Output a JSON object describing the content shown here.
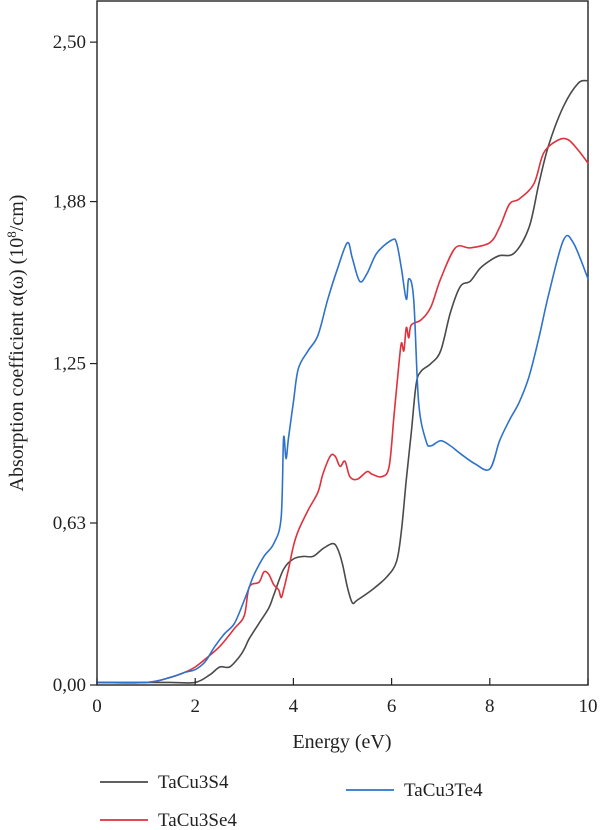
{
  "chart_data": {
    "type": "line",
    "xlabel": "Energy (eV)",
    "ylabel": {
      "prefix": "Absorption coefficient α(ω) (10",
      "sup": "8",
      "suffix": "/cm)"
    },
    "xlim": [
      0,
      10
    ],
    "ylim": [
      0,
      2.66
    ],
    "x_ticks": [
      0,
      2,
      4,
      6,
      8,
      10
    ],
    "x_tick_labels": [
      "0",
      "2",
      "4",
      "6",
      "8",
      "10"
    ],
    "y_ticks": [
      0,
      0.63,
      1.25,
      1.88,
      2.5
    ],
    "y_tick_labels": [
      "0,00",
      "0,63",
      "1,25",
      "1,88",
      "2,50"
    ],
    "grid": false,
    "legend_position": "bottom",
    "series": [
      {
        "name": "TaCu3S4",
        "color": "#4a4a4a",
        "points": [
          [
            0,
            0.01
          ],
          [
            1,
            0.01
          ],
          [
            1.5,
            0.01
          ],
          [
            2,
            0.01
          ],
          [
            2.3,
            0.04
          ],
          [
            2.5,
            0.07
          ],
          [
            2.7,
            0.07
          ],
          [
            2.9,
            0.11
          ],
          [
            3.0,
            0.14
          ],
          [
            3.1,
            0.18
          ],
          [
            3.3,
            0.24
          ],
          [
            3.5,
            0.3
          ],
          [
            3.6,
            0.35
          ],
          [
            3.8,
            0.45
          ],
          [
            4.0,
            0.49
          ],
          [
            4.2,
            0.5
          ],
          [
            4.4,
            0.5
          ],
          [
            4.6,
            0.53
          ],
          [
            4.8,
            0.55
          ],
          [
            4.9,
            0.53
          ],
          [
            5.0,
            0.47
          ],
          [
            5.1,
            0.38
          ],
          [
            5.2,
            0.32
          ],
          [
            5.3,
            0.33
          ],
          [
            5.6,
            0.37
          ],
          [
            5.9,
            0.42
          ],
          [
            6.1,
            0.48
          ],
          [
            6.2,
            0.6
          ],
          [
            6.3,
            0.8
          ],
          [
            6.4,
            0.98
          ],
          [
            6.5,
            1.17
          ],
          [
            6.6,
            1.22
          ],
          [
            6.8,
            1.25
          ],
          [
            7.0,
            1.3
          ],
          [
            7.2,
            1.45
          ],
          [
            7.4,
            1.55
          ],
          [
            7.6,
            1.57
          ],
          [
            7.8,
            1.62
          ],
          [
            8.0,
            1.65
          ],
          [
            8.2,
            1.67
          ],
          [
            8.5,
            1.68
          ],
          [
            8.8,
            1.78
          ],
          [
            9.0,
            1.95
          ],
          [
            9.2,
            2.1
          ],
          [
            9.5,
            2.25
          ],
          [
            9.8,
            2.34
          ],
          [
            10,
            2.35
          ]
        ]
      },
      {
        "name": "TaCu3Se4",
        "color": "#e0313c",
        "points": [
          [
            0,
            0.01
          ],
          [
            1,
            0.01
          ],
          [
            1.5,
            0.03
          ],
          [
            1.8,
            0.05
          ],
          [
            2.0,
            0.07
          ],
          [
            2.2,
            0.1
          ],
          [
            2.5,
            0.15
          ],
          [
            2.8,
            0.22
          ],
          [
            3.0,
            0.27
          ],
          [
            3.1,
            0.38
          ],
          [
            3.3,
            0.4
          ],
          [
            3.4,
            0.44
          ],
          [
            3.5,
            0.43
          ],
          [
            3.6,
            0.39
          ],
          [
            3.7,
            0.37
          ],
          [
            3.75,
            0.34
          ],
          [
            3.8,
            0.37
          ],
          [
            3.9,
            0.45
          ],
          [
            4.0,
            0.54
          ],
          [
            4.1,
            0.6
          ],
          [
            4.3,
            0.68
          ],
          [
            4.5,
            0.75
          ],
          [
            4.6,
            0.82
          ],
          [
            4.75,
            0.89
          ],
          [
            4.85,
            0.89
          ],
          [
            4.95,
            0.85
          ],
          [
            5.05,
            0.87
          ],
          [
            5.15,
            0.81
          ],
          [
            5.3,
            0.8
          ],
          [
            5.5,
            0.83
          ],
          [
            5.6,
            0.82
          ],
          [
            5.8,
            0.81
          ],
          [
            5.95,
            0.85
          ],
          [
            6.05,
            1.05
          ],
          [
            6.15,
            1.25
          ],
          [
            6.2,
            1.33
          ],
          [
            6.25,
            1.3
          ],
          [
            6.3,
            1.39
          ],
          [
            6.35,
            1.35
          ],
          [
            6.4,
            1.4
          ],
          [
            6.6,
            1.42
          ],
          [
            6.8,
            1.47
          ],
          [
            7.0,
            1.58
          ],
          [
            7.3,
            1.7
          ],
          [
            7.6,
            1.7
          ],
          [
            8.0,
            1.72
          ],
          [
            8.2,
            1.78
          ],
          [
            8.4,
            1.87
          ],
          [
            8.6,
            1.89
          ],
          [
            8.9,
            1.95
          ],
          [
            9.1,
            2.07
          ],
          [
            9.4,
            2.12
          ],
          [
            9.6,
            2.12
          ],
          [
            9.8,
            2.08
          ],
          [
            10,
            2.03
          ]
        ]
      },
      {
        "name": "TaCu3Te4",
        "color": "#2f72cc",
        "points": [
          [
            0,
            0.01
          ],
          [
            1,
            0.01
          ],
          [
            1.5,
            0.03
          ],
          [
            1.8,
            0.05
          ],
          [
            2.0,
            0.06
          ],
          [
            2.2,
            0.09
          ],
          [
            2.4,
            0.15
          ],
          [
            2.6,
            0.2
          ],
          [
            2.8,
            0.24
          ],
          [
            3.0,
            0.33
          ],
          [
            3.1,
            0.38
          ],
          [
            3.2,
            0.43
          ],
          [
            3.4,
            0.5
          ],
          [
            3.6,
            0.55
          ],
          [
            3.75,
            0.65
          ],
          [
            3.8,
            0.96
          ],
          [
            3.85,
            0.88
          ],
          [
            3.9,
            0.96
          ],
          [
            4.0,
            1.1
          ],
          [
            4.1,
            1.23
          ],
          [
            4.3,
            1.3
          ],
          [
            4.5,
            1.36
          ],
          [
            4.7,
            1.5
          ],
          [
            4.9,
            1.62
          ],
          [
            5.1,
            1.72
          ],
          [
            5.2,
            1.66
          ],
          [
            5.35,
            1.57
          ],
          [
            5.5,
            1.6
          ],
          [
            5.7,
            1.68
          ],
          [
            6.0,
            1.73
          ],
          [
            6.1,
            1.72
          ],
          [
            6.2,
            1.62
          ],
          [
            6.3,
            1.5
          ],
          [
            6.35,
            1.58
          ],
          [
            6.45,
            1.5
          ],
          [
            6.55,
            1.1
          ],
          [
            6.7,
            0.95
          ],
          [
            6.8,
            0.93
          ],
          [
            7.0,
            0.95
          ],
          [
            7.2,
            0.93
          ],
          [
            7.4,
            0.9
          ],
          [
            7.7,
            0.86
          ],
          [
            8.0,
            0.84
          ],
          [
            8.2,
            0.95
          ],
          [
            8.4,
            1.03
          ],
          [
            8.6,
            1.1
          ],
          [
            8.8,
            1.2
          ],
          [
            9.0,
            1.35
          ],
          [
            9.2,
            1.52
          ],
          [
            9.5,
            1.73
          ],
          [
            9.7,
            1.72
          ],
          [
            10,
            1.58
          ]
        ]
      }
    ]
  }
}
